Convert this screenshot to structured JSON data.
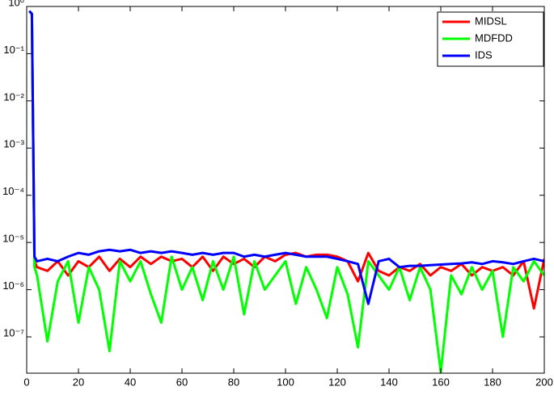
{
  "chart_data": {
    "type": "line",
    "log_y": true,
    "grid": false,
    "legend": "upper right",
    "x": [
      1,
      2,
      3,
      4,
      8,
      12,
      16,
      20,
      24,
      28,
      32,
      36,
      40,
      44,
      48,
      52,
      56,
      60,
      64,
      68,
      72,
      76,
      80,
      84,
      88,
      92,
      96,
      100,
      104,
      108,
      112,
      116,
      120,
      124,
      128,
      132,
      136,
      140,
      144,
      148,
      152,
      156,
      160,
      164,
      168,
      172,
      176,
      180,
      184,
      188,
      192,
      196,
      200
    ],
    "series": [
      {
        "name": "MIDSL",
        "color": "#ff0000",
        "values": [
          0.8,
          0.7,
          4e-06,
          3e-06,
          2.5e-06,
          4e-06,
          2e-06,
          4e-06,
          3e-06,
          5e-06,
          2.5e-06,
          4.5e-06,
          3e-06,
          5e-06,
          3.5e-06,
          5e-06,
          4e-06,
          4.5e-06,
          3e-06,
          5e-06,
          2.5e-06,
          5e-06,
          3.5e-06,
          4.5e-06,
          3e-06,
          5e-06,
          4e-06,
          5.5e-06,
          6e-06,
          5e-06,
          5.5e-06,
          5.5e-06,
          5e-06,
          4e-06,
          1.5e-06,
          6e-06,
          2.5e-06,
          2e-06,
          3e-06,
          2.5e-06,
          3.5e-06,
          2e-06,
          3e-06,
          2.5e-06,
          3.5e-06,
          2e-06,
          3e-06,
          2.5e-06,
          3e-06,
          2e-06,
          4e-06,
          4e-07,
          4.5e-06
        ]
      },
      {
        "name": "MDFDD",
        "color": "#00ff00",
        "values": [
          0.8,
          0.7,
          3e-06,
          2e-06,
          8e-08,
          1.5e-06,
          4e-06,
          2e-07,
          3e-06,
          1e-06,
          5e-08,
          4e-06,
          1.5e-06,
          4e-06,
          8e-07,
          2e-07,
          5e-06,
          1e-06,
          3e-06,
          6e-07,
          4e-06,
          1e-06,
          5e-06,
          3e-07,
          4e-06,
          1e-06,
          2e-06,
          4e-06,
          5e-07,
          3e-06,
          1e-06,
          2.5e-07,
          3e-06,
          8e-07,
          6e-08,
          4e-06,
          2e-06,
          1e-06,
          3e-06,
          6e-07,
          3e-06,
          1e-06,
          1.8e-08,
          2e-06,
          8e-07,
          3e-06,
          1e-06,
          2.5e-06,
          1e-07,
          3e-06,
          1.5e-06,
          4e-06,
          2e-06
        ]
      },
      {
        "name": "IDS",
        "color": "#0000ff",
        "values": [
          0.8,
          0.7,
          5e-06,
          4e-06,
          4.5e-06,
          4e-06,
          5e-06,
          6e-06,
          5.5e-06,
          6.5e-06,
          7e-06,
          6.5e-06,
          7e-06,
          6e-06,
          6.5e-06,
          6e-06,
          6.5e-06,
          6e-06,
          5.5e-06,
          6e-06,
          5.5e-06,
          6e-06,
          6e-06,
          5e-06,
          5.5e-06,
          5e-06,
          5.5e-06,
          6e-06,
          5.5e-06,
          5e-06,
          5e-06,
          5e-06,
          4.5e-06,
          4e-06,
          3.5e-06,
          5e-07,
          4e-06,
          4.5e-06,
          3e-06,
          3.2e-06,
          3.2e-06,
          3.3e-06,
          3.4e-06,
          3.5e-06,
          3.6e-06,
          3.8e-06,
          3.5e-06,
          4e-06,
          3.8e-06,
          3.5e-06,
          4e-06,
          4.5e-06,
          4e-06
        ]
      }
    ],
    "xlim": [
      0,
      200
    ],
    "xticks": [
      0,
      20,
      40,
      60,
      80,
      100,
      120,
      140,
      160,
      180,
      200
    ],
    "ylim": [
      1.7e-08,
      1
    ],
    "yticks": [
      {
        "value": 1e-07,
        "label": "10⁻⁷"
      },
      {
        "value": 1e-06,
        "label": "10⁻⁶"
      },
      {
        "value": 1e-05,
        "label": "10⁻⁵"
      },
      {
        "value": 0.0001,
        "label": "10⁻⁴"
      },
      {
        "value": 0.001,
        "label": "10⁻³"
      },
      {
        "value": 0.01,
        "label": "10⁻²"
      },
      {
        "value": 0.1,
        "label": "10⁻¹"
      },
      {
        "value": 1,
        "label": "10⁰"
      }
    ]
  }
}
